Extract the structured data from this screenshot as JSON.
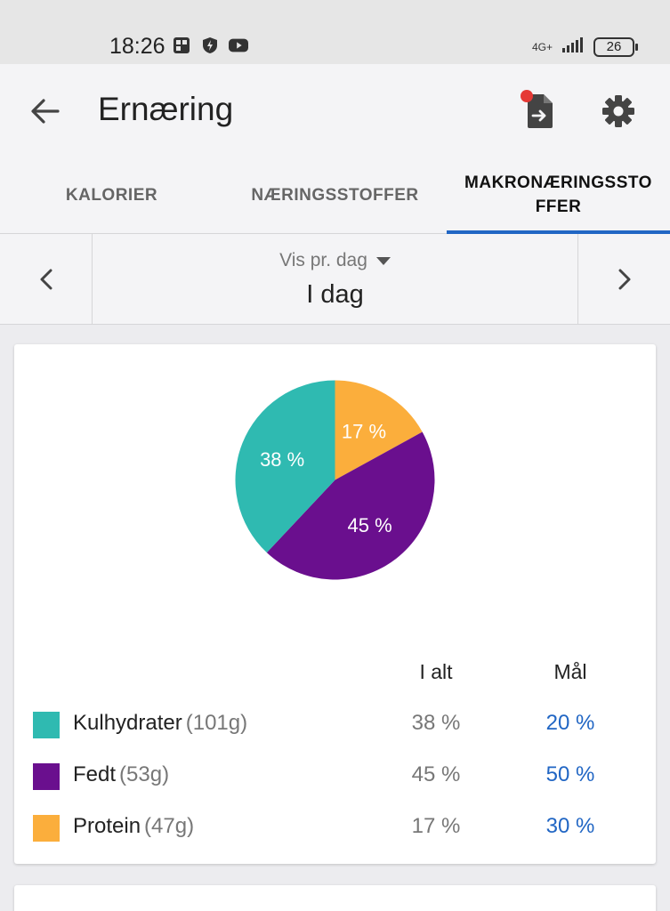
{
  "status_bar": {
    "time": "18:26",
    "network": "4G+",
    "battery": "26"
  },
  "app_bar": {
    "title": "Ernæring"
  },
  "tabs": [
    {
      "label": "KALORIER",
      "active": false
    },
    {
      "label": "NÆRINGSSTOFFER",
      "active": false
    },
    {
      "label": "MAKRONÆRINGSSTOFFER",
      "active": true
    }
  ],
  "date_nav": {
    "mode": "Vis pr. dag",
    "value": "I dag"
  },
  "chart_data": {
    "type": "pie",
    "slices": [
      {
        "name": "Protein",
        "value": 17,
        "label": "17 %",
        "color": "#fbae3c"
      },
      {
        "name": "Fedt",
        "value": 45,
        "label": "45 %",
        "color": "#6a0f8e"
      },
      {
        "name": "Kulhydrater",
        "value": 38,
        "label": "38 %",
        "color": "#2fbab1"
      }
    ]
  },
  "macro_table": {
    "headers": {
      "total": "I alt",
      "goal": "Mål"
    },
    "rows": [
      {
        "name": "Kulhydrater",
        "grams": "(101g)",
        "total": "38 %",
        "goal": "20 %",
        "color": "#2fbab1"
      },
      {
        "name": "Fedt",
        "grams": "(53g)",
        "total": "45 %",
        "goal": "50 %",
        "color": "#6a0f8e"
      },
      {
        "name": "Protein",
        "grams": "(47g)",
        "total": "17 %",
        "goal": "30 %",
        "color": "#fbae3c"
      }
    ]
  }
}
